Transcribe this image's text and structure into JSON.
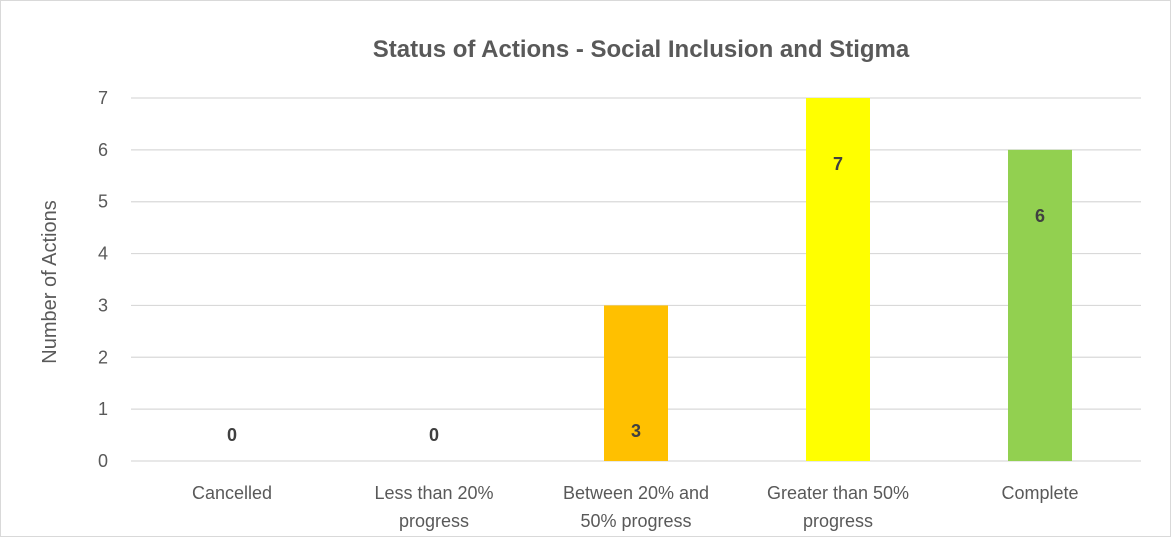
{
  "chart_data": {
    "type": "bar",
    "title": "Status of Actions - Social Inclusion and Stigma",
    "xlabel": "",
    "ylabel": "Number of Actions",
    "ylim": [
      0,
      7
    ],
    "yticks": [
      0,
      1,
      2,
      3,
      4,
      5,
      6,
      7
    ],
    "grid": true,
    "legend": "none",
    "categories": [
      "Cancelled",
      "Less than 20% progress",
      "Between 20% and 50% progress",
      "Greater than 50% progress",
      "Complete"
    ],
    "category_label_lines": [
      [
        "Cancelled"
      ],
      [
        "Less than 20%",
        "progress"
      ],
      [
        "Between 20% and",
        "50% progress"
      ],
      [
        "Greater than 50%",
        "progress"
      ],
      [
        "Complete"
      ]
    ],
    "values": [
      0,
      0,
      3,
      7,
      6
    ],
    "data_labels": [
      "0",
      "0",
      "3",
      "7",
      "6"
    ],
    "colors": [
      "#ffffff",
      "#ffffff",
      "#ffc000",
      "#ffff00",
      "#92d050"
    ]
  }
}
